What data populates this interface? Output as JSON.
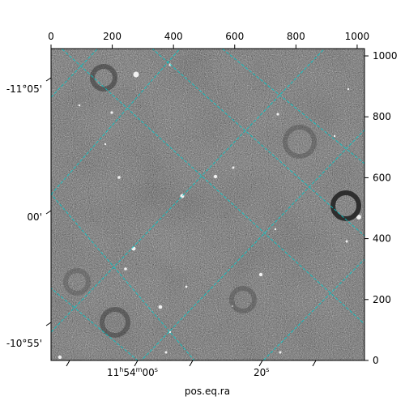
{
  "chart_data": {
    "type": "image",
    "colormap": "grayscale",
    "background": "noisy grayscale sky image with scattered bright point sources and dark ring-shaped artifacts",
    "xlabel": "pos.eq.ra",
    "ylabel": "",
    "xlim": [
      0,
      1024
    ],
    "ylim": [
      0,
      1024
    ],
    "pixel_axes": {
      "top_ticks": [
        0,
        200,
        400,
        600,
        800,
        1000
      ],
      "right_ticks": [
        0,
        200,
        400,
        600,
        800,
        1000
      ]
    },
    "world_axes": {
      "bottom_ticks": [
        {
          "main": "11",
          "sup1": "h",
          "mid": "54",
          "sup2": "m",
          "end": "00",
          "sup3": "s"
        },
        {
          "main": "20",
          "sup1": "s",
          "mid": "",
          "sup2": "",
          "end": "",
          "sup3": ""
        }
      ],
      "left_ticks": [
        {
          "label": "-11°05'"
        },
        {
          "label": "00'"
        },
        {
          "label": "-10°55'"
        }
      ]
    },
    "grid": {
      "on": true,
      "color": "#00c8c8",
      "style": "dashed"
    }
  }
}
